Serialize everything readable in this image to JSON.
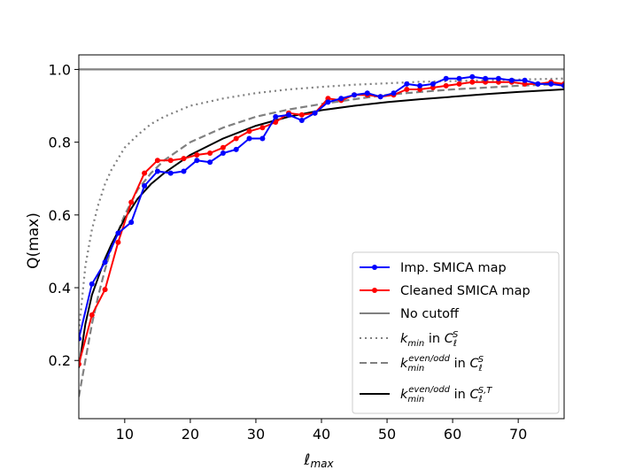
{
  "chart_data": {
    "type": "line",
    "title": "",
    "xlabel": "ℓ",
    "xlabel_sub": "max",
    "ylabel": "Q(max)",
    "xlim": [
      3,
      77
    ],
    "ylim": [
      0.04,
      1.04
    ],
    "xticks": [
      10,
      20,
      30,
      40,
      50,
      60,
      70
    ],
    "yticks": [
      0.2,
      0.4,
      0.6,
      0.8,
      1.0
    ],
    "xtick_labels": [
      "10",
      "20",
      "30",
      "40",
      "50",
      "60",
      "70"
    ],
    "ytick_labels": [
      "0.2",
      "0.4",
      "0.6",
      "0.8",
      "1.0"
    ],
    "legend_position": "lower-right",
    "series": [
      {
        "name": "Imp. SMICA map",
        "color": "#0000ff",
        "style": "solid-marker",
        "x": [
          3,
          5,
          7,
          9,
          11,
          13,
          15,
          17,
          19,
          21,
          23,
          25,
          27,
          29,
          31,
          33,
          35,
          37,
          39,
          41,
          43,
          45,
          47,
          49,
          51,
          53,
          55,
          57,
          59,
          61,
          63,
          65,
          67,
          69,
          71,
          73,
          75,
          77
        ],
        "y": [
          0.26,
          0.41,
          0.47,
          0.55,
          0.58,
          0.68,
          0.72,
          0.715,
          0.72,
          0.75,
          0.745,
          0.77,
          0.78,
          0.81,
          0.81,
          0.87,
          0.875,
          0.86,
          0.88,
          0.91,
          0.92,
          0.93,
          0.935,
          0.925,
          0.935,
          0.96,
          0.955,
          0.96,
          0.975,
          0.975,
          0.98,
          0.975,
          0.975,
          0.97,
          0.97,
          0.96,
          0.96,
          0.955
        ]
      },
      {
        "name": "Cleaned SMICA map",
        "color": "#ff0000",
        "style": "solid-marker",
        "x": [
          3,
          5,
          7,
          9,
          11,
          13,
          15,
          17,
          19,
          21,
          23,
          25,
          27,
          29,
          31,
          33,
          35,
          37,
          39,
          41,
          43,
          45,
          47,
          49,
          51,
          53,
          55,
          57,
          59,
          61,
          63,
          65,
          67,
          69,
          71,
          73,
          75,
          77
        ],
        "y": [
          0.19,
          0.325,
          0.395,
          0.525,
          0.635,
          0.715,
          0.75,
          0.75,
          0.755,
          0.765,
          0.77,
          0.785,
          0.81,
          0.83,
          0.84,
          0.855,
          0.88,
          0.875,
          0.88,
          0.92,
          0.915,
          0.93,
          0.93,
          0.925,
          0.93,
          0.945,
          0.945,
          0.95,
          0.955,
          0.96,
          0.965,
          0.965,
          0.965,
          0.965,
          0.96,
          0.96,
          0.965,
          0.96
        ]
      },
      {
        "name": "No cutoff",
        "color": "#808080",
        "style": "solid",
        "x": [
          3,
          77
        ],
        "y": [
          1.0,
          1.0
        ]
      },
      {
        "name": "k_min in C_ℓ^S",
        "label_parts": [
          "k",
          "min",
          " in ",
          "C",
          "ℓ",
          "S"
        ],
        "color": "#808080",
        "style": "dotted",
        "x": [
          3,
          4,
          5,
          6,
          7,
          8,
          10,
          12,
          14,
          16,
          18,
          20,
          25,
          30,
          35,
          40,
          45,
          50,
          55,
          60,
          65,
          70,
          77
        ],
        "y": [
          0.28,
          0.46,
          0.56,
          0.63,
          0.685,
          0.725,
          0.785,
          0.82,
          0.85,
          0.87,
          0.885,
          0.9,
          0.92,
          0.935,
          0.945,
          0.952,
          0.958,
          0.962,
          0.966,
          0.968,
          0.97,
          0.972,
          0.975
        ]
      },
      {
        "name": "k_min^{even/odd} in C_ℓ^S",
        "label_parts": [
          "k",
          "min",
          "even/odd",
          " in ",
          "C",
          "ℓ",
          "S"
        ],
        "color": "#808080",
        "style": "dashed",
        "x": [
          3,
          4,
          5,
          6,
          7,
          8,
          10,
          12,
          14,
          16,
          18,
          20,
          25,
          30,
          35,
          40,
          45,
          50,
          55,
          60,
          65,
          70,
          77
        ],
        "y": [
          0.1,
          0.2,
          0.3,
          0.38,
          0.45,
          0.51,
          0.6,
          0.67,
          0.715,
          0.75,
          0.775,
          0.8,
          0.84,
          0.87,
          0.89,
          0.905,
          0.918,
          0.93,
          0.938,
          0.945,
          0.95,
          0.955,
          0.96
        ]
      },
      {
        "name": "k_min^{even/odd} in C_ℓ^{S,T}",
        "label_parts": [
          "k",
          "min",
          "even/odd",
          " in ",
          "C",
          "ℓ",
          "S,T"
        ],
        "color": "#000000",
        "style": "solid",
        "x": [
          3,
          4,
          5,
          6,
          7,
          8,
          10,
          12,
          14,
          16,
          18,
          20,
          25,
          30,
          35,
          40,
          45,
          50,
          55,
          60,
          65,
          70,
          77
        ],
        "y": [
          0.18,
          0.3,
          0.38,
          0.43,
          0.48,
          0.52,
          0.59,
          0.645,
          0.685,
          0.715,
          0.74,
          0.765,
          0.81,
          0.845,
          0.87,
          0.888,
          0.9,
          0.91,
          0.918,
          0.925,
          0.932,
          0.938,
          0.945
        ]
      }
    ]
  }
}
